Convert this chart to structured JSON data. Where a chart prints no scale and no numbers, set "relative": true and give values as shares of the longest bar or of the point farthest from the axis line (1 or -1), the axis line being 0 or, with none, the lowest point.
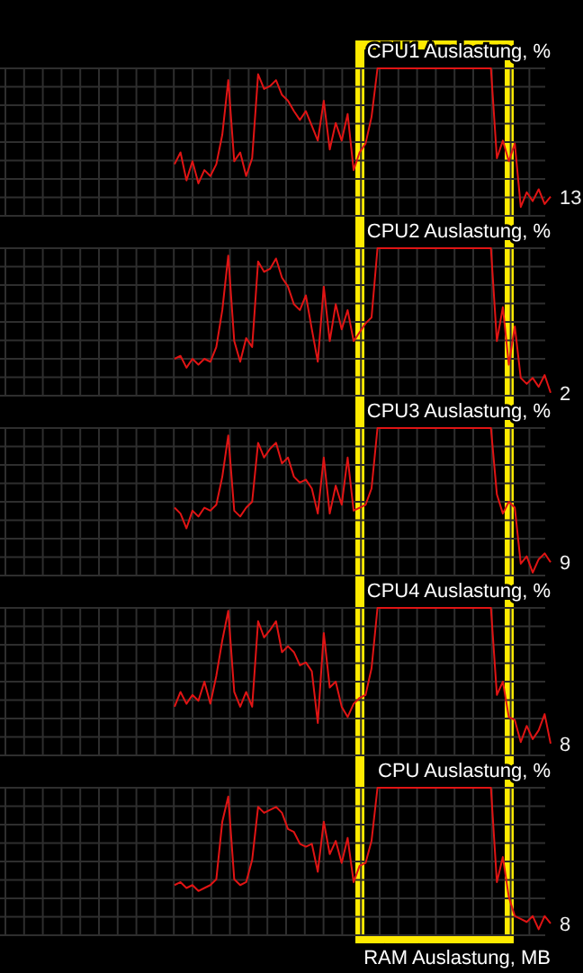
{
  "chart_data": [
    {
      "type": "line",
      "title": "CPU1 Auslastung, %",
      "relative": true,
      "grid": true,
      "categories": [
        null,
        null,
        null,
        null,
        null,
        null,
        null,
        null,
        null,
        null,
        null,
        null,
        null,
        null,
        null,
        null,
        null,
        null,
        null,
        null,
        null,
        null,
        null,
        null,
        null,
        null,
        null,
        null,
        null,
        null,
        null,
        null,
        null,
        null,
        null,
        null,
        null,
        null,
        null,
        null,
        null,
        null,
        null,
        null,
        null,
        null,
        null,
        null,
        null,
        null,
        null,
        null,
        null,
        null,
        null,
        null,
        null,
        null,
        null,
        null,
        null,
        null,
        null,
        null
      ],
      "series": [
        {
          "color": "#e01414",
          "values": [
            0.35,
            0.43,
            0.24,
            0.37,
            0.22,
            0.31,
            0.27,
            0.35,
            0.55,
            0.92,
            0.37,
            0.43,
            0.27,
            0.39,
            0.96,
            0.86,
            0.88,
            0.92,
            0.82,
            0.78,
            0.71,
            0.65,
            0.71,
            0.61,
            0.51,
            0.78,
            0.45,
            0.63,
            0.51,
            0.69,
            0.31,
            0.43,
            0.49,
            0.67,
            1,
            1,
            1,
            1,
            1,
            1,
            1,
            1,
            1,
            1,
            1,
            1,
            1,
            1,
            1,
            1,
            1,
            1,
            1,
            1,
            0.39,
            0.51,
            0.37,
            0.49,
            0.06,
            0.16,
            0.1,
            0.18,
            0.08,
            0.13
          ]
        }
      ],
      "annotations": [
        "13"
      ]
    },
    {
      "type": "line",
      "title": "CPU2 Auslastung, %",
      "relative": true,
      "grid": true,
      "categories": [
        null,
        null,
        null,
        null,
        null,
        null,
        null,
        null,
        null,
        null,
        null,
        null,
        null,
        null,
        null,
        null,
        null,
        null,
        null,
        null,
        null,
        null,
        null,
        null,
        null,
        null,
        null,
        null,
        null,
        null,
        null,
        null,
        null,
        null,
        null,
        null,
        null,
        null,
        null,
        null,
        null,
        null,
        null,
        null,
        null,
        null,
        null,
        null,
        null,
        null,
        null,
        null,
        null,
        null,
        null,
        null,
        null,
        null,
        null,
        null,
        null,
        null,
        null,
        null
      ],
      "series": [
        {
          "color": "#e01414",
          "values": [
            0.25,
            0.27,
            0.19,
            0.25,
            0.21,
            0.25,
            0.23,
            0.33,
            0.58,
            0.95,
            0.37,
            0.23,
            0.39,
            0.33,
            0.91,
            0.84,
            0.86,
            0.93,
            0.8,
            0.74,
            0.62,
            0.58,
            0.68,
            0.45,
            0.23,
            0.74,
            0.37,
            0.62,
            0.45,
            0.58,
            0.37,
            0.43,
            0.49,
            0.53,
            1,
            1,
            1,
            1,
            1,
            1,
            1,
            1,
            1,
            1,
            1,
            1,
            1,
            1,
            1,
            1,
            1,
            1,
            1,
            1,
            0.37,
            0.6,
            0.21,
            0.47,
            0.12,
            0.08,
            0.12,
            0.06,
            0.14,
            0.02
          ]
        }
      ],
      "annotations": [
        "2"
      ]
    },
    {
      "type": "line",
      "title": "CPU3 Auslastung, %",
      "relative": true,
      "grid": true,
      "categories": [
        null,
        null,
        null,
        null,
        null,
        null,
        null,
        null,
        null,
        null,
        null,
        null,
        null,
        null,
        null,
        null,
        null,
        null,
        null,
        null,
        null,
        null,
        null,
        null,
        null,
        null,
        null,
        null,
        null,
        null,
        null,
        null,
        null,
        null,
        null,
        null,
        null,
        null,
        null,
        null,
        null,
        null,
        null,
        null,
        null,
        null,
        null,
        null,
        null,
        null,
        null,
        null,
        null,
        null,
        null,
        null,
        null,
        null,
        null,
        null,
        null,
        null,
        null,
        null
      ],
      "series": [
        {
          "color": "#e01414",
          "values": [
            0.46,
            0.42,
            0.32,
            0.44,
            0.4,
            0.46,
            0.44,
            0.48,
            0.67,
            0.95,
            0.44,
            0.4,
            0.46,
            0.5,
            0.9,
            0.8,
            0.86,
            0.9,
            0.76,
            0.8,
            0.67,
            0.63,
            0.65,
            0.59,
            0.42,
            0.8,
            0.42,
            0.61,
            0.48,
            0.8,
            0.44,
            0.46,
            0.48,
            0.59,
            1,
            1,
            1,
            1,
            1,
            1,
            1,
            1,
            1,
            1,
            1,
            1,
            1,
            1,
            1,
            1,
            1,
            1,
            1,
            1,
            0.55,
            0.42,
            0.5,
            0.46,
            0.08,
            0.13,
            0.02,
            0.11,
            0.15,
            0.09
          ]
        }
      ],
      "annotations": [
        "9"
      ]
    },
    {
      "type": "line",
      "title": "CPU4 Auslastung, %",
      "relative": true,
      "grid": true,
      "categories": [
        null,
        null,
        null,
        null,
        null,
        null,
        null,
        null,
        null,
        null,
        null,
        null,
        null,
        null,
        null,
        null,
        null,
        null,
        null,
        null,
        null,
        null,
        null,
        null,
        null,
        null,
        null,
        null,
        null,
        null,
        null,
        null,
        null,
        null,
        null,
        null,
        null,
        null,
        null,
        null,
        null,
        null,
        null,
        null,
        null,
        null,
        null,
        null,
        null,
        null,
        null,
        null,
        null,
        null,
        null,
        null,
        null,
        null,
        null,
        null,
        null,
        null,
        null,
        null
      ],
      "series": [
        {
          "color": "#e01414",
          "values": [
            0.33,
            0.43,
            0.35,
            0.41,
            0.37,
            0.5,
            0.35,
            0.54,
            0.78,
            0.98,
            0.43,
            0.33,
            0.43,
            0.33,
            0.91,
            0.8,
            0.85,
            0.91,
            0.7,
            0.74,
            0.7,
            0.61,
            0.63,
            0.57,
            0.22,
            0.83,
            0.46,
            0.5,
            0.33,
            0.26,
            0.35,
            0.39,
            0.41,
            0.59,
            1,
            1,
            1,
            1,
            1,
            1,
            1,
            1,
            1,
            1,
            1,
            1,
            1,
            1,
            1,
            1,
            1,
            1,
            1,
            1,
            0.41,
            0.5,
            0.26,
            0.24,
            0.09,
            0.2,
            0.11,
            0.17,
            0.28,
            0.08
          ]
        }
      ],
      "annotations": [
        "8"
      ]
    },
    {
      "type": "line",
      "title": "CPU Auslastung, %",
      "relative": true,
      "grid": true,
      "categories": [
        null,
        null,
        null,
        null,
        null,
        null,
        null,
        null,
        null,
        null,
        null,
        null,
        null,
        null,
        null,
        null,
        null,
        null,
        null,
        null,
        null,
        null,
        null,
        null,
        null,
        null,
        null,
        null,
        null,
        null,
        null,
        null,
        null,
        null,
        null,
        null,
        null,
        null,
        null,
        null,
        null,
        null,
        null,
        null,
        null,
        null,
        null,
        null,
        null,
        null,
        null,
        null,
        null,
        null,
        null,
        null,
        null,
        null,
        null,
        null,
        null,
        null,
        null,
        null
      ],
      "series": [
        {
          "color": "#e01414",
          "values": [
            0.34,
            0.36,
            0.32,
            0.34,
            0.3,
            0.32,
            0.34,
            0.38,
            0.77,
            0.94,
            0.38,
            0.34,
            0.36,
            0.51,
            0.87,
            0.83,
            0.85,
            0.87,
            0.83,
            0.72,
            0.7,
            0.62,
            0.6,
            0.62,
            0.43,
            0.77,
            0.55,
            0.64,
            0.49,
            0.66,
            0.36,
            0.47,
            0.49,
            0.64,
            1,
            1,
            1,
            1,
            1,
            1,
            1,
            1,
            1,
            1,
            1,
            1,
            1,
            1,
            1,
            1,
            1,
            1,
            1,
            1,
            0.36,
            0.53,
            0.26,
            0.13,
            0.11,
            0.09,
            0.13,
            0.04,
            0.13,
            0.08
          ]
        }
      ],
      "annotations": [
        "8",
        "RAM Auslastung, MB"
      ]
    }
  ]
}
